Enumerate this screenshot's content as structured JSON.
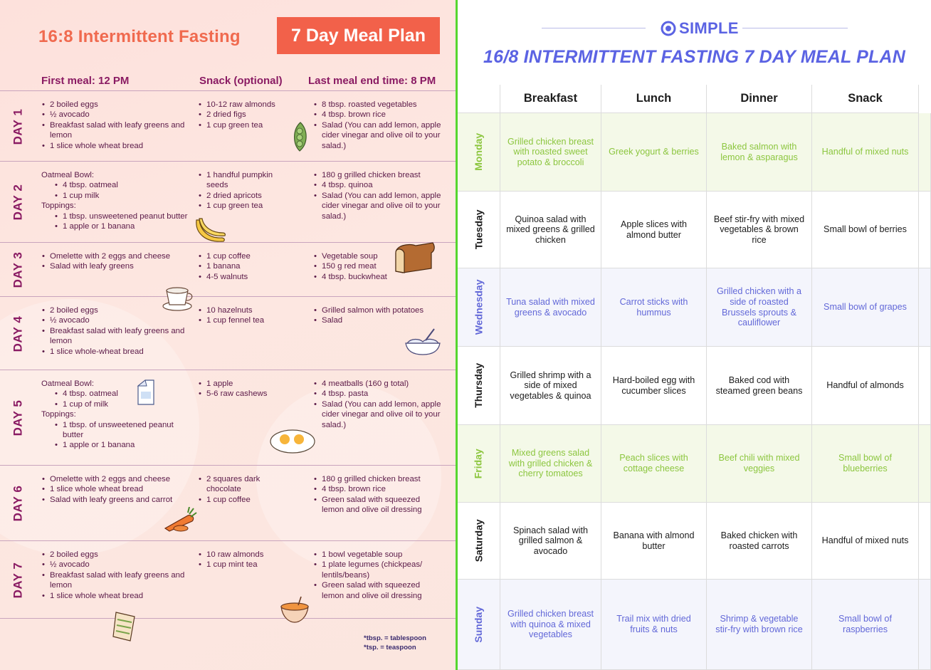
{
  "left": {
    "title": "16:8 Intermittent Fasting",
    "badge": "7 Day Meal Plan",
    "columns": [
      "First meal: 12 PM",
      "Snack (optional)",
      "Last meal end time: 8 PM"
    ],
    "footnote": [
      "*tbsp. = tablespoon",
      "*tsp. = teaspoon"
    ],
    "days": [
      {
        "label": "DAY 1",
        "first": [
          {
            "t": "2 boiled eggs"
          },
          {
            "t": "½ avocado"
          },
          {
            "t": "Breakfast salad with leafy greens and lemon"
          },
          {
            "t": "1 slice whole wheat bread"
          }
        ],
        "snack": [
          {
            "t": "10-12 raw almonds"
          },
          {
            "t": "2 dried figs"
          },
          {
            "t": "1 cup green tea"
          }
        ],
        "last": [
          {
            "t": "8 tbsp. roasted vegetables"
          },
          {
            "t": "4 tbsp. brown rice"
          },
          {
            "t": "Salad (You can add lemon, apple cider vinegar and olive oil to your salad.)"
          }
        ]
      },
      {
        "label": "DAY 2",
        "first": [
          {
            "t": "Oatmeal Bowl:",
            "h": true
          },
          {
            "t": "4 tbsp. oatmeal",
            "s": true
          },
          {
            "t": "1 cup milk",
            "s": true
          },
          {
            "t": "Toppings:",
            "h": true
          },
          {
            "t": "1 tbsp. unsweetened peanut butter",
            "s": true
          },
          {
            "t": "1 apple or 1 banana",
            "s": true
          }
        ],
        "snack": [
          {
            "t": "1 handful pumpkin seeds"
          },
          {
            "t": "2 dried apricots"
          },
          {
            "t": "1 cup green tea"
          }
        ],
        "last": [
          {
            "t": "180 g grilled chicken breast"
          },
          {
            "t": "4 tbsp. quinoa"
          },
          {
            "t": "Salad (You can add lemon, apple cider vinegar and olive oil to your salad.)"
          }
        ]
      },
      {
        "label": "DAY 3",
        "first": [
          {
            "t": "Omelette with 2 eggs and cheese"
          },
          {
            "t": "Salad with leafy greens"
          }
        ],
        "snack": [
          {
            "t": "1 cup coffee"
          },
          {
            "t": "1 banana"
          },
          {
            "t": "4-5 walnuts"
          }
        ],
        "last": [
          {
            "t": "Vegetable soup"
          },
          {
            "t": "150 g red meat"
          },
          {
            "t": "4 tbsp. buckwheat"
          }
        ]
      },
      {
        "label": "DAY 4",
        "first": [
          {
            "t": "2 boiled eggs"
          },
          {
            "t": "½ avocado"
          },
          {
            "t": "Breakfast salad with leafy greens and lemon"
          },
          {
            "t": "1 slice whole-wheat bread"
          }
        ],
        "snack": [
          {
            "t": "10 hazelnuts"
          },
          {
            "t": "1 cup fennel tea"
          }
        ],
        "last": [
          {
            "t": "Grilled salmon with potatoes"
          },
          {
            "t": "Salad"
          }
        ]
      },
      {
        "label": "DAY 5",
        "first": [
          {
            "t": "Oatmeal Bowl:",
            "h": true
          },
          {
            "t": "4 tbsp. oatmeal",
            "s": true
          },
          {
            "t": "1 cup of milk",
            "s": true
          },
          {
            "t": "Toppings:",
            "h": true
          },
          {
            "t": "1 tbsp. of unsweetened peanut butter",
            "s": true
          },
          {
            "t": "1 apple or 1 banana",
            "s": true
          }
        ],
        "snack": [
          {
            "t": "1 apple"
          },
          {
            "t": "5-6 raw cashews"
          }
        ],
        "last": [
          {
            "t": "4 meatballs (160 g total)"
          },
          {
            "t": "4 tbsp. pasta"
          },
          {
            "t": "Salad (You can add lemon, apple cider vinegar and olive oil to your salad.)"
          }
        ]
      },
      {
        "label": "DAY 6",
        "first": [
          {
            "t": "Omelette with 2 eggs and cheese"
          },
          {
            "t": "1 slice whole wheat bread"
          },
          {
            "t": "Salad with leafy greens and carrot"
          }
        ],
        "snack": [
          {
            "t": "2 squares dark chocolate"
          },
          {
            "t": "1 cup coffee"
          }
        ],
        "last": [
          {
            "t": "180 g grilled chicken breast"
          },
          {
            "t": "4 tbsp. brown rice"
          },
          {
            "t": "Green salad with squeezed lemon and olive oil dressing"
          }
        ]
      },
      {
        "label": "DAY 7",
        "first": [
          {
            "t": "2 boiled eggs"
          },
          {
            "t": "½ avocado"
          },
          {
            "t": "Breakfast salad with leafy greens and lemon"
          },
          {
            "t": "1 slice whole wheat bread"
          }
        ],
        "snack": [
          {
            "t": "10 raw almonds"
          },
          {
            "t": "1 cup mint tea"
          }
        ],
        "last": [
          {
            "t": "1 bowl vegetable soup"
          },
          {
            "t": "1 plate legumes (chickpeas/ lentils/beans)"
          },
          {
            "t": "Green salad with squeezed lemon and olive oil dressing"
          }
        ]
      }
    ]
  },
  "right": {
    "brand": "SIMPLE",
    "title": "16/8 INTERMITTENT FASTING 7 DAY MEAL PLAN",
    "headers": [
      "Breakfast",
      "Lunch",
      "Dinner",
      "Snack"
    ],
    "rows": [
      {
        "day": "Monday",
        "text": "#8cc63f",
        "bg": "#f4f9e8",
        "meals": [
          "Grilled chicken breast with roasted sweet potato & broccoli",
          "Greek yogurt & berries",
          "Baked salmon with lemon & asparagus",
          "Handful of mixed nuts"
        ]
      },
      {
        "day": "Tuesday",
        "text": "#1d1d1d",
        "bg": "#ffffff",
        "meals": [
          "Quinoa salad with mixed greens & grilled chicken",
          "Apple slices with almond butter",
          "Beef stir-fry with mixed vegetables & brown rice",
          "Small bowl of berries"
        ]
      },
      {
        "day": "Wednesday",
        "text": "#6268d8",
        "bg": "#f4f5fc",
        "meals": [
          "Tuna salad with mixed greens & avocado",
          "Carrot sticks with hummus",
          "Grilled chicken with a side of roasted Brussels sprouts & cauliflower",
          "Small bowl of grapes"
        ]
      },
      {
        "day": "Thursday",
        "text": "#1d1d1d",
        "bg": "#ffffff",
        "meals": [
          "Grilled shrimp with a side of mixed vegetables & quinoa",
          "Hard-boiled egg with cucumber slices",
          "Baked cod with steamed green beans",
          "Handful of almonds"
        ]
      },
      {
        "day": "Friday",
        "text": "#8cc63f",
        "bg": "#f4f9e8",
        "meals": [
          "Mixed greens salad with grilled chicken & cherry tomatoes",
          "Peach slices with cottage cheese",
          "Beef chili with mixed veggies",
          "Small bowl of blueberries"
        ]
      },
      {
        "day": "Saturday",
        "text": "#1d1d1d",
        "bg": "#ffffff",
        "meals": [
          "Spinach salad with grilled salmon & avocado",
          "Banana with almond butter",
          "Baked chicken with roasted carrots",
          "Handful of mixed nuts"
        ]
      },
      {
        "day": "Sunday",
        "text": "#6268d8",
        "bg": "#f4f5fc",
        "meals": [
          "Grilled chicken breast with quinoa & mixed vegetables",
          "Trail mix with dried fruits & nuts",
          "Shrimp & vegetable stir-fry with brown rice",
          "Small bowl of raspberries"
        ]
      }
    ]
  },
  "icons": [
    "peas-icon",
    "banana-icon",
    "bread-icon",
    "coffee-cup-icon",
    "yogurt-bowl-icon",
    "milk-carton-icon",
    "fried-eggs-icon",
    "carrot-icon",
    "soup-bowl-icon",
    "wrap-icon",
    "target-logo-icon"
  ]
}
